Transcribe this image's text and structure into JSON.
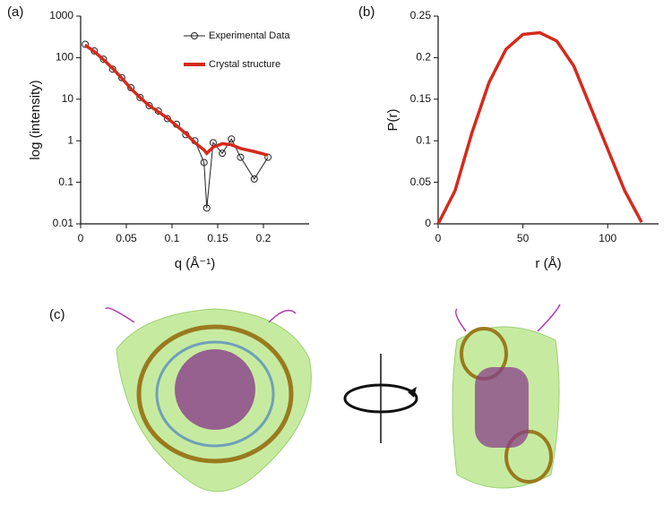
{
  "panels": [
    "(a)",
    "(b)",
    "(c)"
  ],
  "chart_data": [
    {
      "type": "line",
      "xlabel": "q (Å⁻¹)",
      "ylabel": "log (intensity)",
      "yscale": "log",
      "xlim": [
        0,
        0.25
      ],
      "xticks": [
        0,
        0.05,
        0.1,
        0.15,
        0.2
      ],
      "ylim": [
        0.01,
        1000
      ],
      "yticks": [
        0.01,
        0.1,
        1,
        10,
        100,
        1000
      ],
      "legend": "upper right",
      "x": [
        0.005,
        0.015,
        0.025,
        0.035,
        0.045,
        0.055,
        0.065,
        0.075,
        0.085,
        0.095,
        0.105,
        0.115,
        0.125,
        0.135,
        0.138,
        0.145,
        0.155,
        0.165,
        0.175,
        0.19,
        0.205
      ],
      "series": [
        {
          "name": "Experimental Data",
          "color": "#222222",
          "markers": true,
          "values": [
            210,
            145,
            92,
            53,
            33,
            19,
            11,
            7,
            5.2,
            3.4,
            2.5,
            1.4,
            1.0,
            0.3,
            0.024,
            0.9,
            0.5,
            1.1,
            0.4,
            0.12,
            0.4
          ]
        },
        {
          "name": "Crystal structure",
          "color": "#d42a1c",
          "markers": false,
          "values": [
            200,
            140,
            90,
            55,
            32,
            18,
            11,
            7,
            5,
            3.5,
            2.3,
            1.5,
            0.9,
            0.6,
            0.5,
            0.7,
            0.85,
            0.8,
            0.65,
            0.55,
            0.45
          ]
        }
      ]
    },
    {
      "type": "line",
      "xlabel": "r (Å)",
      "ylabel": "P(r)",
      "xlim": [
        0,
        130
      ],
      "xticks": [
        0,
        50,
        100
      ],
      "ylim": [
        0,
        0.25
      ],
      "yticks": [
        0,
        0.05,
        0.1,
        0.15,
        0.2,
        0.25
      ],
      "x": [
        0,
        10,
        20,
        30,
        40,
        50,
        60,
        70,
        80,
        90,
        100,
        110,
        120
      ],
      "series": [
        {
          "color": "#d42a1c",
          "values": [
            0,
            0.04,
            0.11,
            0.17,
            0.21,
            0.228,
            0.23,
            0.22,
            0.19,
            0.14,
            0.09,
            0.04,
            0.002
          ]
        }
      ]
    }
  ]
}
